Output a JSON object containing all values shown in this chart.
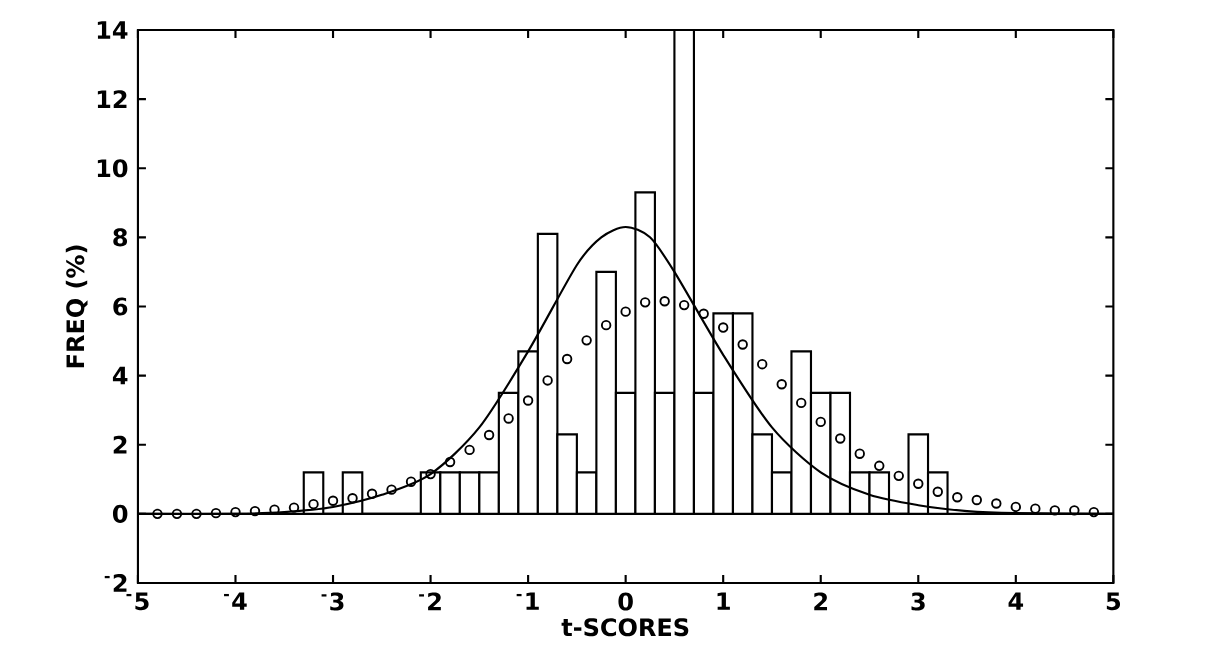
{
  "chart_data": {
    "type": "histogram",
    "xlabel": "t-SCORES",
    "ylabel": "FREQ (%)",
    "bins": [
      -3.3,
      -3.1,
      -2.9,
      -2.7,
      -2.5,
      -2.3,
      -2.1,
      -1.9,
      -1.7,
      -1.5,
      -1.3,
      -1.1,
      -0.9,
      -0.7,
      -0.5,
      -0.3,
      -0.1,
      0.1,
      0.3,
      0.5,
      0.7,
      0.9,
      1.1,
      1.3,
      1.5,
      1.7,
      1.9,
      2.1,
      2.3,
      2.5,
      2.7,
      2.9,
      3.1,
      3.3
    ],
    "values": [
      1.2,
      0,
      1.2,
      0,
      0,
      0,
      1.2,
      1.2,
      1.2,
      1.2,
      3.5,
      4.7,
      8.1,
      2.3,
      1.2,
      7.0,
      3.5,
      9.3,
      3.5,
      14,
      3.5,
      5.8,
      5.8,
      2.3,
      1.2,
      4.7,
      3.5,
      3.5,
      1.2,
      1.2,
      0,
      2.3,
      1.2
    ],
    "color": "#000000",
    "series": [
      {
        "type": "line",
        "color": "#000000",
        "x": [
          -5,
          -4,
          -3.5,
          -3,
          -2.5,
          -2,
          -1.5,
          -1,
          -0.5,
          -0.25,
          0,
          0.25,
          0.5,
          1,
          1.5,
          2,
          2.5,
          3,
          3.5,
          4,
          5
        ],
        "values": [
          0,
          0,
          0.05,
          0.2,
          0.55,
          1.15,
          2.5,
          4.7,
          7.2,
          8.0,
          8.3,
          8.0,
          7.0,
          4.6,
          2.5,
          1.2,
          0.55,
          0.25,
          0.08,
          0.02,
          0
        ]
      },
      {
        "type": "scatter",
        "color": "#000000",
        "marker": "circle",
        "x": [
          -4.8,
          -4.6,
          -4.4,
          -4.2,
          -4.0,
          -3.8,
          -3.6,
          -3.4,
          -3.2,
          -3.0,
          -2.8,
          -2.6,
          -2.4,
          -2.2,
          -2.0,
          -1.8,
          -1.6,
          -1.4,
          -1.2,
          -1.0,
          -0.8,
          -0.6,
          -0.4,
          -0.2,
          0,
          0.2,
          0.4,
          0.6,
          0.8,
          1.0,
          1.2,
          1.4,
          1.6,
          1.8,
          2.0,
          2.2,
          2.4,
          2.6,
          2.8,
          3.0,
          3.2,
          3.4,
          3.6,
          3.8,
          4.0,
          4.2,
          4.4,
          4.6,
          4.8
        ],
        "values": [
          0,
          0,
          0,
          0.02,
          0.05,
          0.08,
          0.12,
          0.18,
          0.28,
          0.38,
          0.45,
          0.58,
          0.7,
          0.93,
          1.15,
          1.5,
          1.85,
          2.28,
          2.76,
          3.28,
          3.86,
          4.48,
          5.02,
          5.46,
          5.85,
          6.12,
          6.15,
          6.04,
          5.79,
          5.39,
          4.9,
          4.33,
          3.75,
          3.21,
          2.66,
          2.18,
          1.74,
          1.39,
          1.1,
          0.87,
          0.64,
          0.48,
          0.4,
          0.3,
          0.2,
          0.15,
          0.1,
          0.1,
          0.05
        ]
      }
    ],
    "ref_lines": [
      {
        "axis": "y",
        "value": 0
      }
    ],
    "xlim": [
      -5,
      5
    ],
    "ylim": [
      -2,
      14
    ],
    "xticks": [
      {
        "value": -5,
        "label": "$^{-}$5"
      },
      {
        "value": -4,
        "label": "$^{-}$4"
      },
      {
        "value": -3,
        "label": "$^{-}$3"
      },
      {
        "value": -2,
        "label": "$^{-}$2"
      },
      {
        "value": -1,
        "label": "$^{-}$1"
      },
      0,
      1,
      2,
      3,
      4,
      5
    ],
    "yticks": [
      {
        "value": -2,
        "label": "$^{-}$2"
      },
      0,
      2,
      4,
      6,
      8,
      10,
      12,
      14
    ]
  }
}
